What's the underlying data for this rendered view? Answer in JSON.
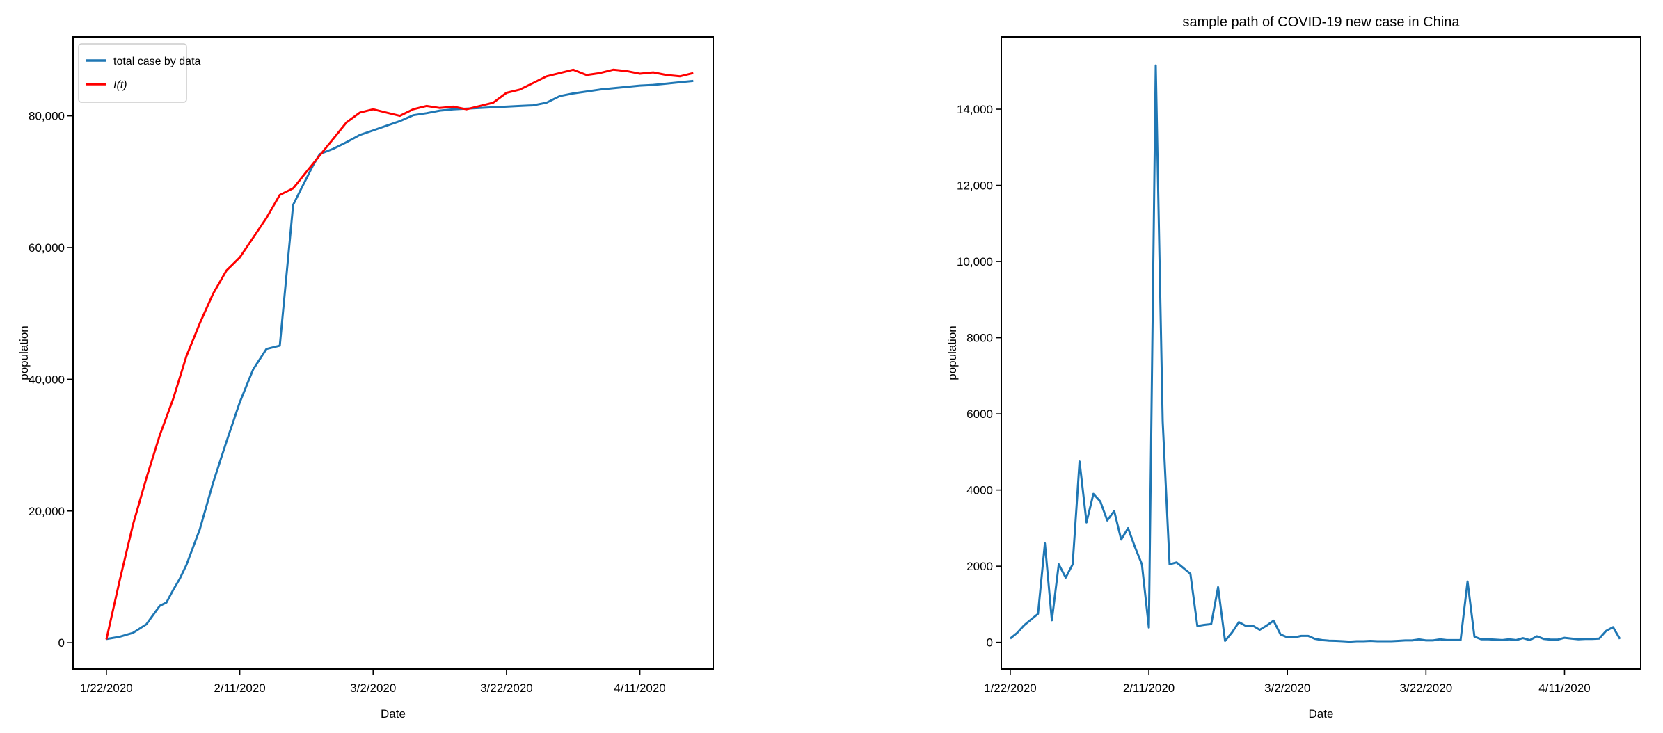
{
  "chart_data": [
    {
      "type": "line",
      "title": "",
      "xlabel": "Date",
      "ylabel": "population",
      "x_ticks": [
        "1/22/2020",
        "2/11/2020",
        "3/2/2020",
        "3/22/2020",
        "4/11/2020"
      ],
      "y_ticks": [
        "0",
        "20,000",
        "40,000",
        "60,000",
        "80,000"
      ],
      "xlim": [
        -5,
        91
      ],
      "ylim": [
        -4000,
        92000
      ],
      "legend_position": "upper-left",
      "grid": false,
      "series": [
        {
          "name": "total case by data",
          "color": "#1f77b4",
          "x": [
            0,
            2,
            4,
            6,
            8,
            9,
            10,
            11,
            12,
            14,
            16,
            18,
            20,
            22,
            24,
            26,
            28,
            29,
            30,
            31,
            32,
            34,
            36,
            38,
            40,
            42,
            44,
            46,
            48,
            50,
            52,
            54,
            56,
            58,
            60,
            62,
            64,
            66,
            68,
            70,
            72,
            74,
            76,
            78,
            80,
            82,
            84,
            86,
            88
          ],
          "y": [
            548,
            900,
            1500,
            2800,
            5600,
            6100,
            8000,
            9700,
            11800,
            17200,
            24300,
            30500,
            36500,
            41500,
            44600,
            45100,
            66500,
            68500,
            70500,
            72500,
            74200,
            75000,
            76000,
            77100,
            77800,
            78500,
            79200,
            80100,
            80400,
            80800,
            81000,
            81100,
            81200,
            81300,
            81400,
            81500,
            81600,
            82000,
            83000,
            83400,
            83700,
            84000,
            84200,
            84400,
            84600,
            84700,
            84900,
            85100,
            85300
          ]
        },
        {
          "name": "$I(t)$",
          "legend_label": "I(t)",
          "color": "#ff0000",
          "x": [
            0,
            2,
            4,
            6,
            8,
            10,
            12,
            14,
            16,
            18,
            20,
            22,
            24,
            26,
            28,
            30,
            32,
            34,
            36,
            38,
            40,
            42,
            44,
            46,
            48,
            50,
            52,
            54,
            56,
            58,
            60,
            62,
            64,
            66,
            68,
            70,
            72,
            74,
            76,
            78,
            80,
            82,
            84,
            86,
            88
          ],
          "y": [
            500,
            9500,
            18000,
            25000,
            31500,
            37000,
            43500,
            48500,
            53000,
            56500,
            58500,
            61500,
            64500,
            68000,
            69000,
            71500,
            74000,
            76500,
            79000,
            80500,
            81000,
            80500,
            80000,
            81000,
            81500,
            81200,
            81400,
            81000,
            81500,
            82000,
            83500,
            84000,
            85000,
            86000,
            86500,
            87000,
            86200,
            86500,
            87000,
            86800,
            86400,
            86600,
            86200,
            86000,
            86500
          ]
        }
      ]
    },
    {
      "type": "line",
      "title": "sample path of COVID-19 new case in China",
      "xlabel": "Date",
      "ylabel": "population",
      "x_ticks": [
        "1/22/2020",
        "2/11/2020",
        "3/2/2020",
        "3/22/2020",
        "4/11/2020"
      ],
      "y_ticks": [
        "0",
        "2000",
        "4000",
        "6000",
        "8000",
        "10,000",
        "12,000",
        "14,000"
      ],
      "xlim": [
        -1.3,
        91
      ],
      "ylim": [
        -700,
        15900
      ],
      "grid": false,
      "series": [
        {
          "name": "",
          "color": "#1f77b4",
          "x": [
            0,
            1,
            2,
            3,
            4,
            5,
            6,
            7,
            8,
            9,
            10,
            11,
            12,
            13,
            14,
            15,
            16,
            17,
            18,
            19,
            20,
            21,
            22,
            23,
            24,
            25,
            26,
            27,
            28,
            29,
            30,
            31,
            32,
            33,
            34,
            35,
            36,
            37,
            38,
            39,
            40,
            41,
            42,
            43,
            44,
            45,
            46,
            47,
            48,
            49,
            50,
            51,
            52,
            53,
            54,
            55,
            56,
            57,
            58,
            59,
            60,
            61,
            62,
            63,
            64,
            65,
            66,
            67,
            68,
            69,
            70,
            71,
            72,
            73,
            74,
            75,
            76,
            77,
            78,
            79,
            80,
            81,
            82,
            83,
            84,
            85,
            86,
            87,
            88
          ],
          "y": [
            100,
            250,
            450,
            600,
            750,
            2600,
            580,
            2050,
            1700,
            2050,
            4750,
            3150,
            3900,
            3700,
            3200,
            3450,
            2700,
            3000,
            2500,
            2050,
            390,
            15150,
            5800,
            2050,
            2100,
            1950,
            1800,
            430,
            460,
            480,
            1450,
            40,
            260,
            530,
            430,
            440,
            330,
            440,
            570,
            210,
            130,
            130,
            170,
            170,
            90,
            60,
            45,
            40,
            30,
            20,
            30,
            30,
            40,
            30,
            30,
            30,
            40,
            50,
            50,
            80,
            50,
            50,
            80,
            60,
            60,
            60,
            1600,
            150,
            80,
            80,
            70,
            60,
            80,
            60,
            110,
            60,
            160,
            90,
            70,
            70,
            120,
            100,
            80,
            90,
            90,
            100,
            300,
            400,
            90
          ]
        }
      ]
    }
  ]
}
